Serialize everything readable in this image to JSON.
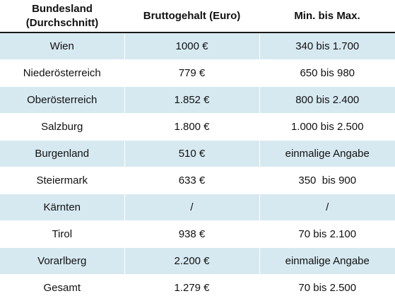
{
  "table": {
    "headers": [
      {
        "line1": "Bundesland",
        "line2": "(Durchschnitt)"
      },
      {
        "line1": "Bruttogehalt (Euro)",
        "line2": ""
      },
      {
        "line1": "Min. bis Max.",
        "line2": ""
      }
    ],
    "rows": [
      [
        "Wien",
        "1000 €",
        "340 bis 1.700"
      ],
      [
        "Niederösterreich",
        "779 €",
        "650 bis 980"
      ],
      [
        "Oberösterreich",
        "1.852 €",
        "800 bis 2.400"
      ],
      [
        "Salzburg",
        "1.800 €",
        "1.000 bis 2.500"
      ],
      [
        "Burgenland",
        "510 €",
        "einmalige Angabe"
      ],
      [
        "Steiermark",
        "633 €",
        "350  bis 900"
      ],
      [
        "Kärnten",
        "/",
        "/"
      ],
      [
        "Tirol",
        "938 €",
        "70 bis 2.100"
      ],
      [
        "Vorarlberg",
        "2.200 €",
        "einmalige Angabe"
      ],
      [
        "Gesamt",
        "1.279 €",
        "70 bis 2.500"
      ]
    ]
  },
  "colors": {
    "row_band": "#d6e9f1",
    "header_rule": "#1a1a1a"
  }
}
